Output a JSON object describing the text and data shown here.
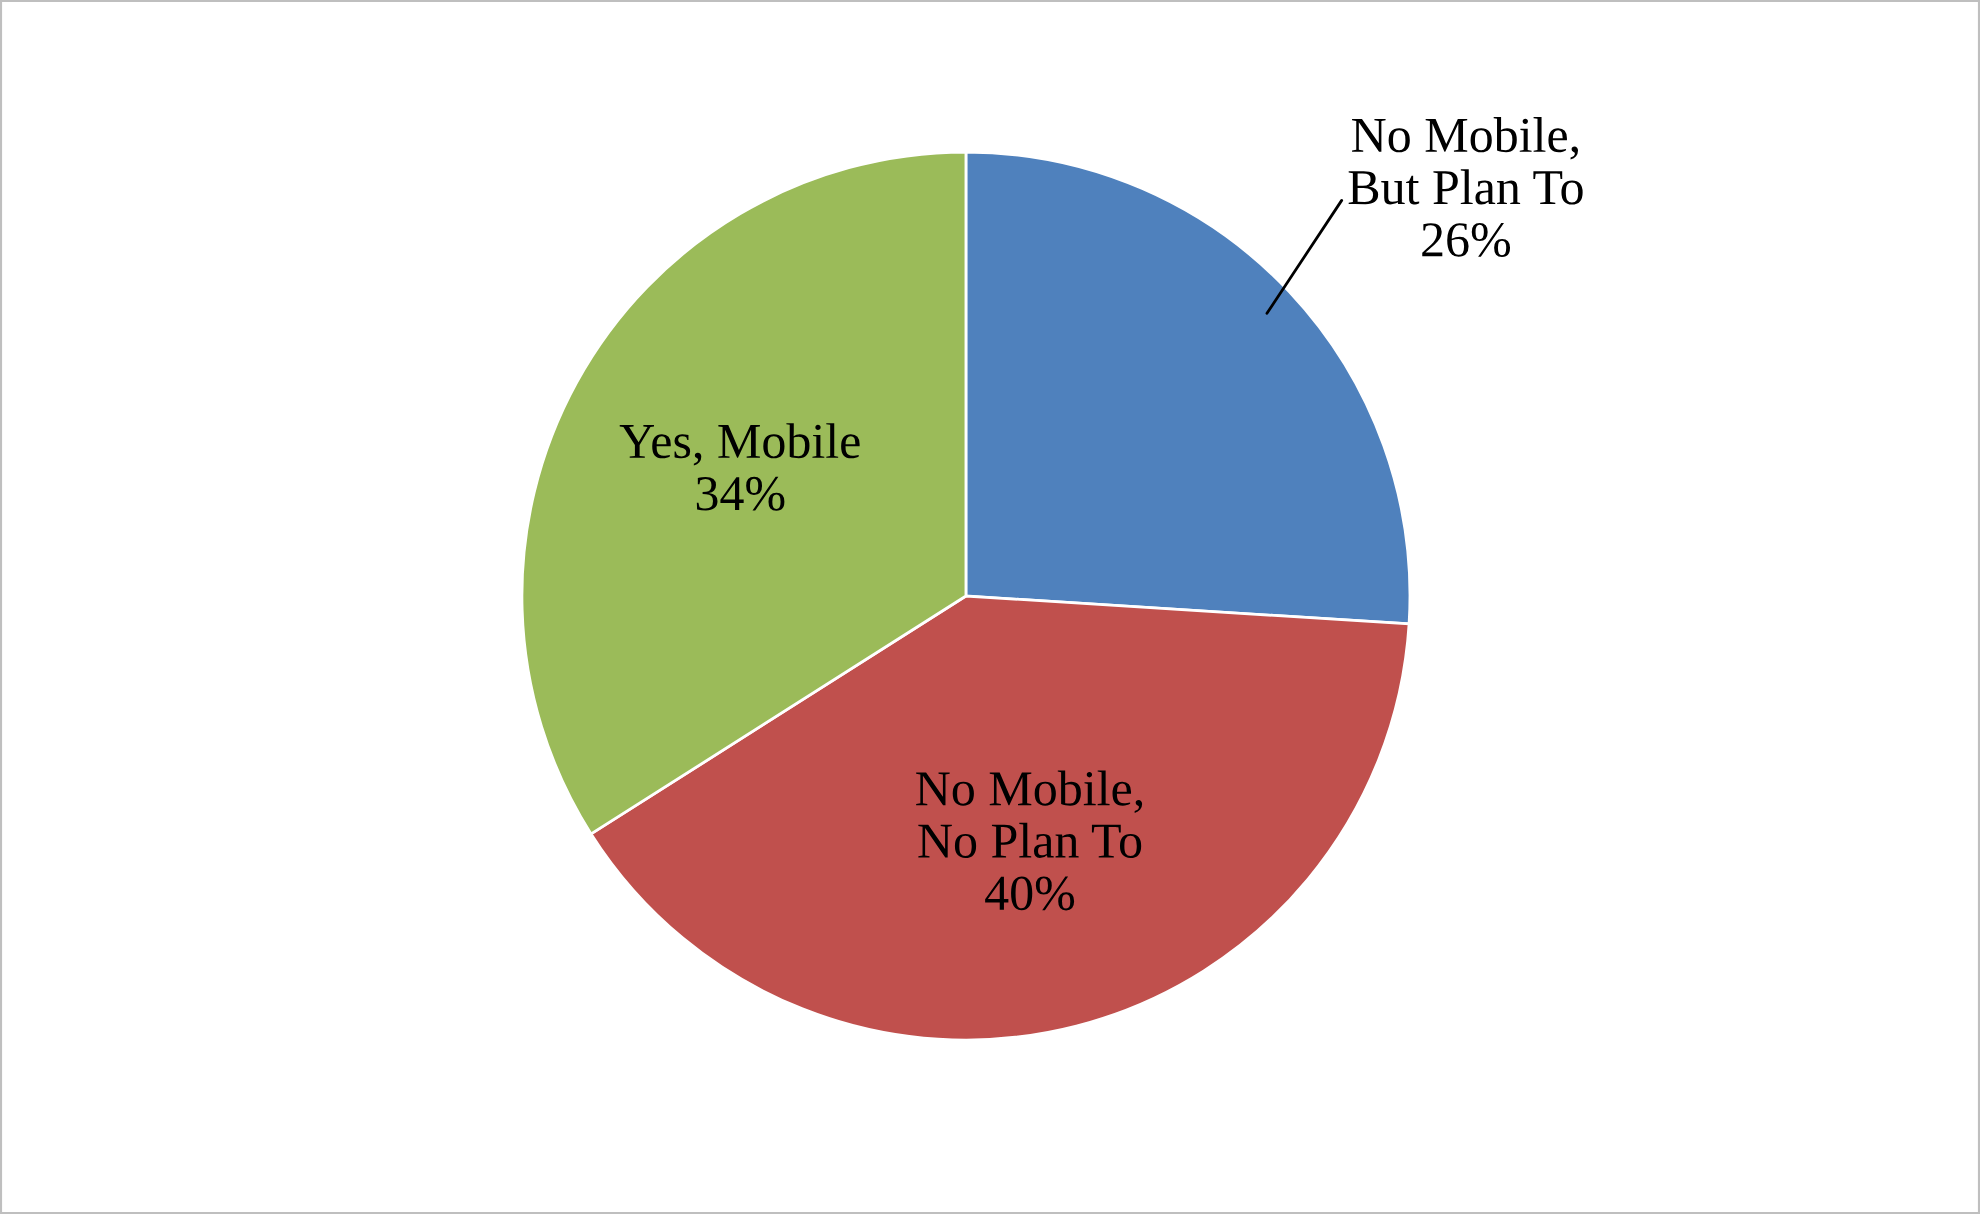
{
  "chart_data": {
    "type": "pie",
    "categories": [
      "No Mobile, But Plan To",
      "No Mobile, No Plan To",
      "Yes, Mobile"
    ],
    "values": [
      26,
      40,
      34
    ],
    "colors": [
      "#4f81bd",
      "#c0504d",
      "#9bbb59"
    ],
    "value_labels": [
      "26%",
      "40%",
      "34%"
    ],
    "legend": false
  }
}
